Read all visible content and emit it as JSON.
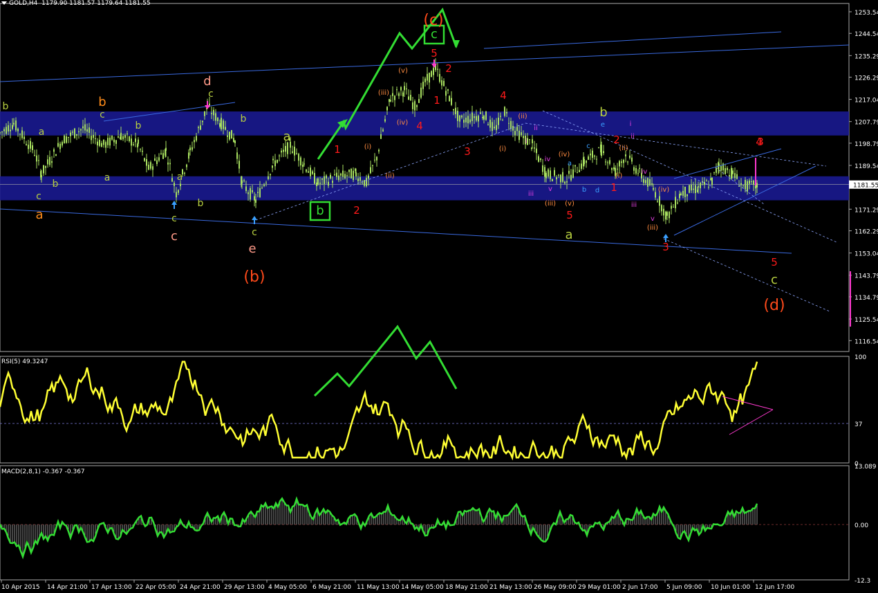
{
  "header": {
    "symbol": "GOLD,H4",
    "ohlc": "1179.90 1181.57 1179.64 1181.55"
  },
  "chart_data": {
    "type": "line",
    "price_axis": {
      "ticks": [
        "1253.54",
        "1244.54",
        "1235.29",
        "1226.29",
        "1217.04",
        "1207.79",
        "1198.79",
        "1189.54",
        "1171.29",
        "1162.29",
        "1153.04",
        "1143.79",
        "1134.79",
        "1125.54",
        "1116.54"
      ],
      "current_price": "1181.55",
      "ylim": [
        1112.0,
        1257.0
      ]
    },
    "rsi": {
      "label": "RSI(5) 49.3247",
      "ticks": [
        "100",
        "37",
        "0"
      ],
      "level": 37
    },
    "macd": {
      "label": "MACD(2,8,1) -0.367 -0.367",
      "ticks": [
        "13.089",
        "0.00",
        "-12.3"
      ]
    },
    "time_axis": [
      "10 Apr 2015",
      "14 Apr 21:00",
      "17 Apr 13:00",
      "22 Apr 05:00",
      "24 Apr 21:00",
      "29 Apr 13:00",
      "4 May 05:00",
      "6 May 21:00",
      "11 May 13:00",
      "14 May 05:00",
      "18 May 21:00",
      "21 May 13:00",
      "26 May 09:00",
      "29 May 01:00",
      "2 Jun 17:00",
      "5 Jun 09:00",
      "10 Jun 01:00",
      "12 Jun 17:00"
    ],
    "wave_labels": [
      {
        "text": "(c)",
        "color": "#ff4a1a",
        "size": 22
      },
      {
        "text": "c",
        "color": "#33dd33",
        "size": 18,
        "boxed": true
      },
      {
        "text": "b",
        "color": "#33dd33",
        "size": 18,
        "boxed": true
      },
      {
        "text": "(b)",
        "color": "#ff4a1a",
        "size": 22
      },
      {
        "text": "(d)",
        "color": "#ff4a1a",
        "size": 22
      },
      {
        "text": "d",
        "color": "#ff9a88",
        "size": 18
      },
      {
        "text": "e",
        "color": "#ff9a88",
        "size": 18
      },
      {
        "text": "c",
        "color": "#ff9a88",
        "size": 18
      },
      {
        "text": "a",
        "color": "#ff8c1a",
        "size": 18
      },
      {
        "text": "b",
        "color": "#ff8c1a",
        "size": 18
      },
      {
        "text": "b",
        "color": "#b8d040",
        "size": 14
      },
      {
        "text": "a",
        "color": "#b8d040",
        "size": 14
      },
      {
        "text": "b",
        "color": "#b8d040",
        "size": 14
      },
      {
        "text": "a",
        "color": "#b8d040",
        "size": 14
      },
      {
        "text": "b",
        "color": "#b8d040",
        "size": 14
      },
      {
        "text": "a",
        "color": "#b8d040",
        "size": 14
      },
      {
        "text": "b",
        "color": "#b8d040",
        "size": 14
      },
      {
        "text": "c",
        "color": "#b8d040",
        "size": 14
      },
      {
        "text": "c",
        "color": "#b8d040",
        "size": 14
      },
      {
        "text": "c",
        "color": "#b8d040",
        "size": 14
      },
      {
        "text": "c",
        "color": "#b8d040",
        "size": 14
      },
      {
        "text": "b",
        "color": "#b8d040",
        "size": 14
      },
      {
        "text": "c",
        "color": "#b8d040",
        "size": 14
      },
      {
        "text": "a",
        "color": "#b8d040",
        "size": 18
      },
      {
        "text": "b",
        "color": "#b8d040",
        "size": 18
      },
      {
        "text": "a",
        "color": "#b8d040",
        "size": 18
      },
      {
        "text": "c",
        "color": "#b8d040",
        "size": 18
      },
      {
        "text": "1",
        "color": "#ff1a1a",
        "size": 15
      },
      {
        "text": "2",
        "color": "#ff1a1a",
        "size": 15
      },
      {
        "text": "3",
        "color": "#ff1a1a",
        "size": 15
      },
      {
        "text": "4",
        "color": "#ff1a1a",
        "size": 15
      },
      {
        "text": "5",
        "color": "#ff1a1a",
        "size": 15
      },
      {
        "text": "1",
        "color": "#ff1a1a",
        "size": 15
      },
      {
        "text": "2",
        "color": "#ff1a1a",
        "size": 15
      },
      {
        "text": "3",
        "color": "#ff1a1a",
        "size": 15
      },
      {
        "text": "4",
        "color": "#ff1a1a",
        "size": 15
      },
      {
        "text": "5",
        "color": "#ff1a1a",
        "size": 15
      },
      {
        "text": "1",
        "color": "#ff1a1a",
        "size": 15
      },
      {
        "text": "2",
        "color": "#ff1a1a",
        "size": 15
      },
      {
        "text": "3",
        "color": "#ff1a1a",
        "size": 15
      },
      {
        "text": "4",
        "color": "#ff1a1a",
        "size": 15
      },
      {
        "text": "5",
        "color": "#ff1a1a",
        "size": 15
      },
      {
        "text": "(i)",
        "color": "#ff8c40",
        "size": 10
      },
      {
        "text": "(ii)",
        "color": "#ff8c40",
        "size": 10
      },
      {
        "text": "(iii)",
        "color": "#ff8c40",
        "size": 10
      },
      {
        "text": "(iv)",
        "color": "#ff8c40",
        "size": 10
      },
      {
        "text": "(v)",
        "color": "#ff8c40",
        "size": 10
      },
      {
        "text": "(i)",
        "color": "#ff8c40",
        "size": 10
      },
      {
        "text": "(ii)",
        "color": "#ff8c40",
        "size": 10
      },
      {
        "text": "(iii)",
        "color": "#ff8c40",
        "size": 10
      },
      {
        "text": "(iv)",
        "color": "#ff8c40",
        "size": 10
      },
      {
        "text": "(v)",
        "color": "#ff8c40",
        "size": 10
      },
      {
        "text": "(i)",
        "color": "#ff8c40",
        "size": 10
      },
      {
        "text": "(ii)",
        "color": "#ff8c40",
        "size": 10
      },
      {
        "text": "(iii)",
        "color": "#ff8c40",
        "size": 10
      },
      {
        "text": "(iv)",
        "color": "#ff8c40",
        "size": 10
      },
      {
        "text": "i",
        "color": "#e040e0",
        "size": 10
      },
      {
        "text": "ii",
        "color": "#e040e0",
        "size": 10
      },
      {
        "text": "iii",
        "color": "#e040e0",
        "size": 10
      },
      {
        "text": "iv",
        "color": "#e040e0",
        "size": 10
      },
      {
        "text": "v",
        "color": "#e040e0",
        "size": 10
      },
      {
        "text": "i",
        "color": "#e040e0",
        "size": 10
      },
      {
        "text": "ii",
        "color": "#e040e0",
        "size": 10
      },
      {
        "text": "iii",
        "color": "#e040e0",
        "size": 10
      },
      {
        "text": "iv",
        "color": "#e040e0",
        "size": 10
      },
      {
        "text": "v",
        "color": "#e040e0",
        "size": 10
      },
      {
        "text": "a",
        "color": "#3aa0ff",
        "size": 10
      },
      {
        "text": "b",
        "color": "#3aa0ff",
        "size": 10
      },
      {
        "text": "c",
        "color": "#3aa0ff",
        "size": 10
      },
      {
        "text": "d",
        "color": "#3aa0ff",
        "size": 10
      },
      {
        "text": "e",
        "color": "#3aa0ff",
        "size": 10
      }
    ],
    "colors": {
      "background": "#000000",
      "candles": "#a8e060",
      "zone": "#1a1a90",
      "trendline": "#3a6ae0",
      "projection": "#33dd33",
      "rsi_line": "#ffff33",
      "macd_line": "#33dd33",
      "macd_hist": "#8a8a8a",
      "pink": "#ff3ad0"
    }
  }
}
